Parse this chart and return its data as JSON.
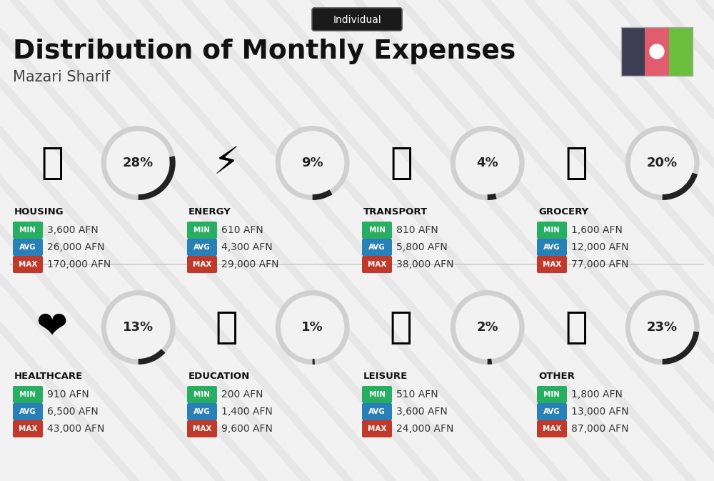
{
  "title": "Distribution of Monthly Expenses",
  "subtitle": "Individual",
  "city": "Mazari Sharif",
  "background_color": "#f2f2f2",
  "categories": [
    {
      "name": "HOUSING",
      "pct": 28,
      "min": "3,600 AFN",
      "avg": "26,000 AFN",
      "max": "170,000 AFN",
      "row": 0,
      "col": 0
    },
    {
      "name": "ENERGY",
      "pct": 9,
      "min": "610 AFN",
      "avg": "4,300 AFN",
      "max": "29,000 AFN",
      "row": 0,
      "col": 1
    },
    {
      "name": "TRANSPORT",
      "pct": 4,
      "min": "810 AFN",
      "avg": "5,800 AFN",
      "max": "38,000 AFN",
      "row": 0,
      "col": 2
    },
    {
      "name": "GROCERY",
      "pct": 20,
      "min": "1,600 AFN",
      "avg": "12,000 AFN",
      "max": "77,000 AFN",
      "row": 0,
      "col": 3
    },
    {
      "name": "HEALTHCARE",
      "pct": 13,
      "min": "910 AFN",
      "avg": "6,500 AFN",
      "max": "43,000 AFN",
      "row": 1,
      "col": 0
    },
    {
      "name": "EDUCATION",
      "pct": 1,
      "min": "200 AFN",
      "avg": "1,400 AFN",
      "max": "9,600 AFN",
      "row": 1,
      "col": 1
    },
    {
      "name": "LEISURE",
      "pct": 2,
      "min": "510 AFN",
      "avg": "3,600 AFN",
      "max": "24,000 AFN",
      "row": 1,
      "col": 2
    },
    {
      "name": "OTHER",
      "pct": 23,
      "min": "1,800 AFN",
      "avg": "13,000 AFN",
      "max": "87,000 AFN",
      "row": 1,
      "col": 3
    }
  ],
  "min_color": "#27ae60",
  "avg_color": "#2980b9",
  "max_color": "#c0392b",
  "name_color": "#111111",
  "pct_color": "#222222",
  "arc_bg_color": "#d0d0d0",
  "arc_fg_color": "#222222",
  "flag_colors": [
    "#3d3d54",
    "#e05c6e",
    "#6abf3e"
  ],
  "stripe_color": "#e0e0e0",
  "divider_color": "#cccccc"
}
